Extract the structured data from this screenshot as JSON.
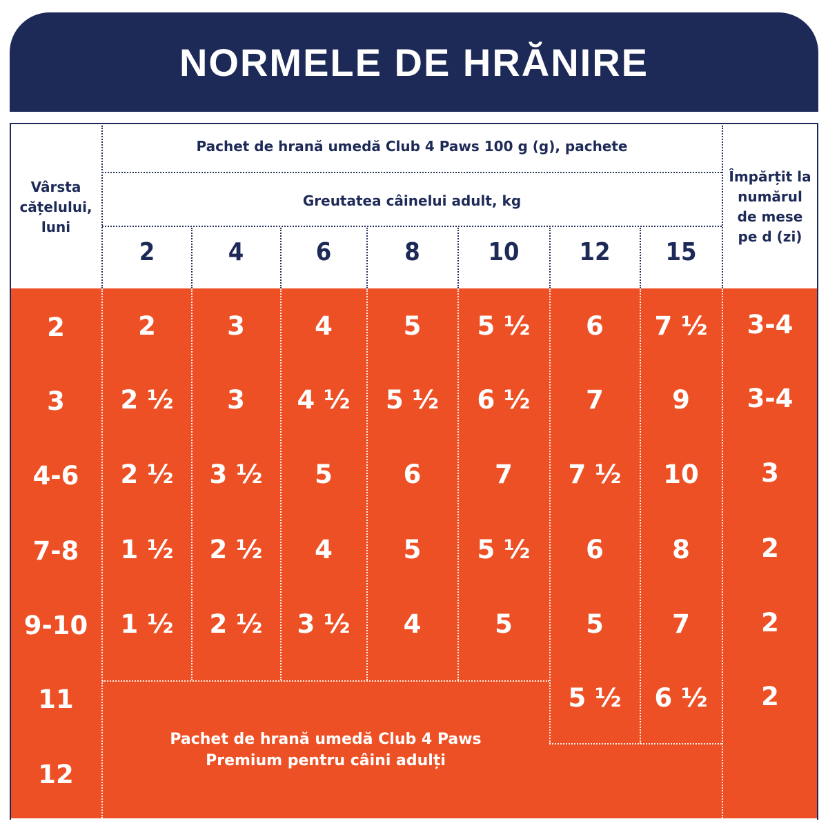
{
  "title": "NORMELE DE HRĂNIRE",
  "header": {
    "age_label": "Vârsta cățelului, luni",
    "package_label": "Pachet de hrană umedă Club 4 Paws  100 g (g), pachete",
    "weight_label": "Greutatea câinelui adult, kg",
    "meals_label": "Împărțit la numărul de mese pe d (zi)",
    "weights": [
      "2",
      "4",
      "6",
      "8",
      "10",
      "12",
      "15"
    ]
  },
  "rows": [
    {
      "age": "2",
      "values": [
        "2",
        "3",
        "4",
        "5",
        "5 ½",
        "6",
        "7 ½"
      ],
      "meals": "3-4"
    },
    {
      "age": "3",
      "values": [
        "2 ½",
        "3",
        "4 ½",
        "5 ½",
        "6 ½",
        "7",
        "9"
      ],
      "meals": "3-4"
    },
    {
      "age": "4-6",
      "values": [
        "2 ½",
        "3  ½",
        "5",
        "6",
        "7",
        "7 ½",
        "10"
      ],
      "meals": "3"
    },
    {
      "age": "7-8",
      "values": [
        "1 ½",
        "2 ½",
        "4",
        "5",
        "5 ½",
        "6",
        "8"
      ],
      "meals": "2"
    },
    {
      "age": "9-10",
      "values": [
        "1 ½",
        "2 ½",
        "3 ½",
        "4",
        "5",
        "5",
        "7"
      ],
      "meals": "2"
    },
    {
      "age": "11",
      "values": [
        "",
        "",
        "",
        "",
        "",
        "5 ½",
        "6 ½"
      ],
      "meals": "2"
    },
    {
      "age": "12",
      "values": [
        "",
        "",
        "",
        "",
        "",
        "",
        ""
      ],
      "meals": ""
    }
  ],
  "adult_note": {
    "line1": "Pachet de hrană umedă Club 4 Paws",
    "line2": "Premium pentru câini adulți"
  },
  "colors": {
    "navy": "#1d2a57",
    "orange": "#ee5025",
    "white": "#ffffff"
  }
}
